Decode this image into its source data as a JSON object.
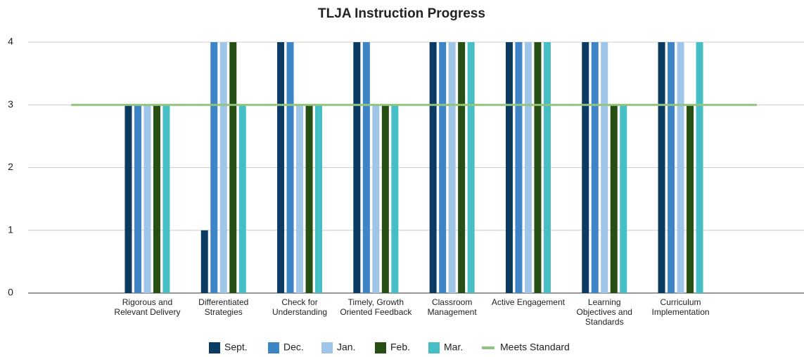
{
  "chart_data": {
    "type": "bar",
    "title": "TLJA Instruction Progress",
    "categories": [
      null,
      "Rigorous and Relevant Delivery",
      "Differentiated Strategies",
      "Check for Understanding",
      "Timely, Growth Oriented Feedback",
      "Classroom Management",
      "Active Engagement",
      "Learning Objectives and Standards",
      "Curriculum Implementation",
      null
    ],
    "series": [
      {
        "name": "Sept.",
        "color": "#0b3a62",
        "values": [
          null,
          3,
          1,
          4,
          4,
          4,
          4,
          4,
          4,
          null
        ]
      },
      {
        "name": "Dec.",
        "color": "#3d85c6",
        "values": [
          null,
          3,
          4,
          4,
          4,
          4,
          4,
          4,
          4,
          null
        ]
      },
      {
        "name": "Jan.",
        "color": "#9fc5e8",
        "values": [
          null,
          3,
          4,
          3,
          3,
          4,
          4,
          4,
          4,
          null
        ]
      },
      {
        "name": "Feb.",
        "color": "#274e13",
        "values": [
          null,
          3,
          4,
          3,
          3,
          4,
          4,
          3,
          3,
          null
        ]
      },
      {
        "name": "Mar.",
        "color": "#45bec6",
        "values": [
          null,
          3,
          3,
          3,
          3,
          4,
          4,
          3,
          4,
          null
        ]
      },
      {
        "name": "Meets Standard",
        "color": "#93c47d",
        "type": "line",
        "values": [
          3,
          3,
          3,
          3,
          3,
          3,
          3,
          3,
          3,
          3
        ]
      }
    ],
    "ylim": [
      0,
      4
    ],
    "yticks": [
      0,
      1,
      2,
      3,
      4
    ],
    "grid": true,
    "legend": "bottom"
  }
}
